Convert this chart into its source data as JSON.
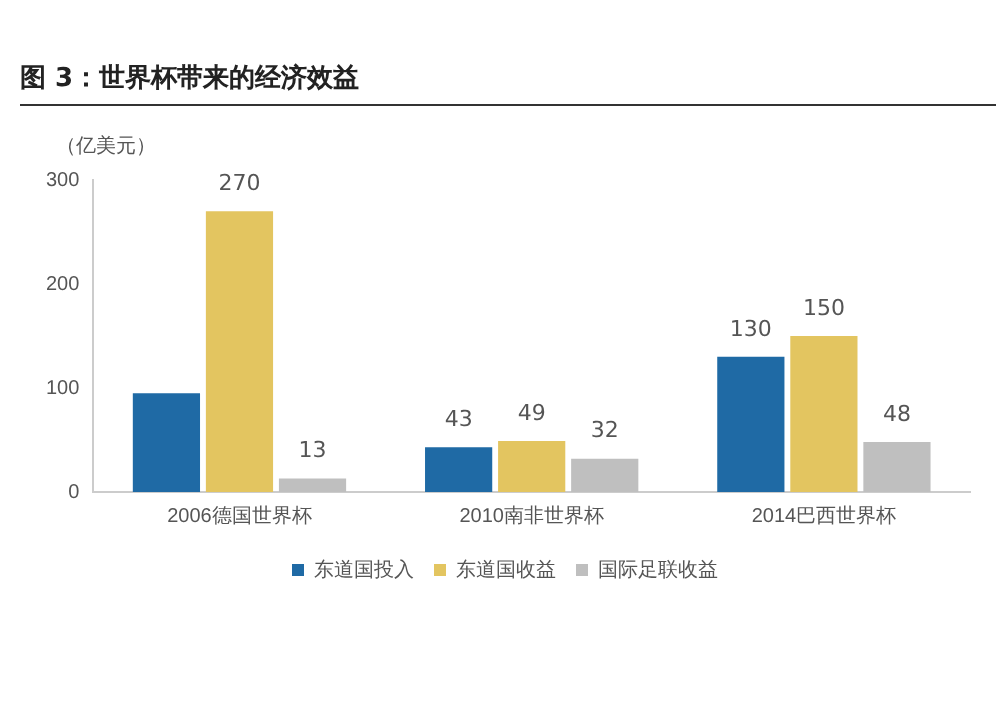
{
  "chart_data": {
    "type": "bar",
    "title": "图 3：世界杯带来的经济效益",
    "ylabel": "（亿美元）",
    "categories": [
      "2006德国世界杯",
      "2010南非世界杯",
      "2014巴西世界杯"
    ],
    "series": [
      {
        "name": "东道国投入",
        "color": "#1f6aa5",
        "values": [
          95,
          43,
          130
        ],
        "value_labels": [
          null,
          "43",
          "130"
        ]
      },
      {
        "name": "东道国收益",
        "color": "#e3c560",
        "values": [
          270,
          49,
          150
        ],
        "value_labels": [
          "270",
          "49",
          "150"
        ]
      },
      {
        "name": "国际足联收益",
        "color": "#bfbfbf",
        "values": [
          13,
          32,
          48
        ],
        "value_labels": [
          "13",
          "32",
          "48"
        ]
      }
    ],
    "ylim": [
      0,
      300
    ],
    "yticks": [
      0,
      100,
      200,
      300
    ],
    "grid": false,
    "legend": "bottom"
  }
}
